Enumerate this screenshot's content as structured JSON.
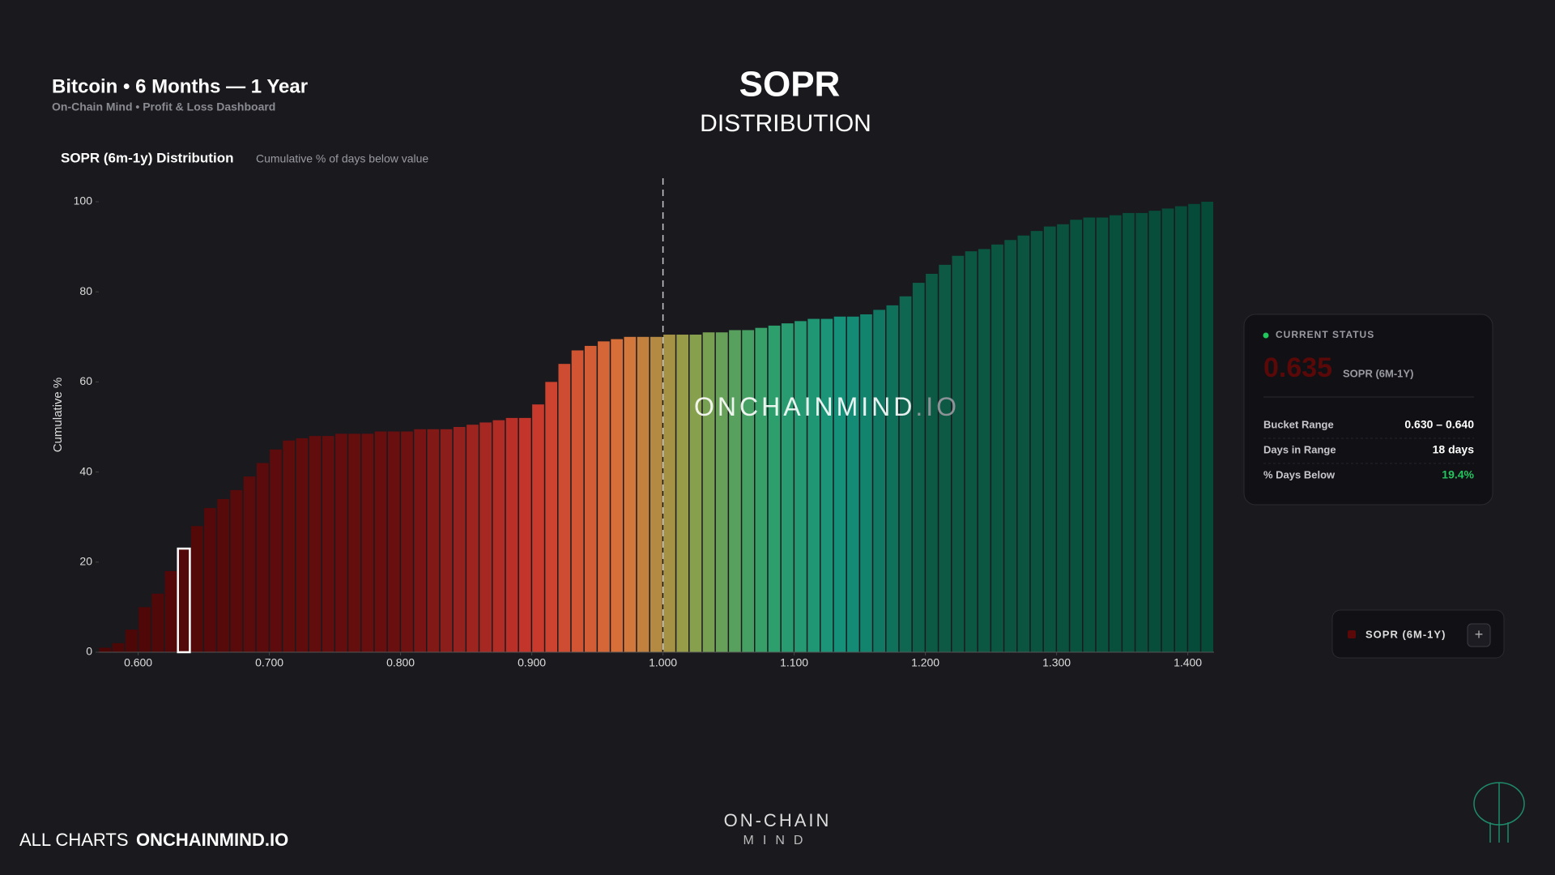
{
  "header": {
    "title": "Bitcoin • 6 Months — 1 Year",
    "subtitle": "On-Chain Mind • Profit & Loss Dashboard",
    "main_title": "SOPR",
    "main_subtitle": "DISTRIBUTION"
  },
  "chart_data": {
    "type": "histogram",
    "title": "SOPR (6m-1y) Distribution",
    "subtitle": "Cumulative % of days below value",
    "y_label": "Cumulative %",
    "bins": [
      0.57,
      0.58,
      0.59,
      0.6,
      0.61,
      0.62,
      0.63,
      0.64,
      0.65,
      0.66,
      0.67,
      0.68,
      0.69,
      0.7,
      0.71,
      0.72,
      0.73,
      0.74,
      0.75,
      0.76,
      0.77,
      0.78,
      0.79,
      0.8,
      0.81,
      0.82,
      0.83,
      0.84,
      0.85,
      0.86,
      0.87,
      0.88,
      0.89,
      0.9,
      0.91,
      0.92,
      0.93,
      0.94,
      0.95,
      0.96,
      0.97,
      0.98,
      0.99,
      1.0,
      1.01,
      1.02,
      1.03,
      1.04,
      1.05,
      1.06,
      1.07,
      1.08,
      1.09,
      1.1,
      1.11,
      1.12,
      1.13,
      1.14,
      1.15,
      1.16,
      1.17,
      1.18,
      1.19,
      1.2,
      1.21,
      1.22,
      1.23,
      1.24,
      1.25,
      1.26,
      1.27,
      1.28,
      1.29,
      1.3,
      1.31,
      1.32,
      1.33,
      1.34,
      1.35,
      1.36,
      1.37,
      1.38,
      1.39,
      1.4,
      1.41,
      1.42
    ],
    "values": [
      1,
      2,
      5,
      10,
      13,
      18,
      23,
      28,
      32,
      34,
      36,
      39,
      42,
      45,
      47,
      47.5,
      48,
      48,
      48.5,
      48.5,
      48.5,
      49,
      49,
      49,
      49.5,
      49.5,
      49.5,
      50,
      50.5,
      51,
      51.5,
      52,
      52,
      55,
      60,
      64,
      67,
      68,
      69,
      69.5,
      70,
      70,
      70,
      70.5,
      70.5,
      70.5,
      71,
      71,
      71.5,
      71.5,
      72,
      72.5,
      73,
      73.5,
      74,
      74,
      74.5,
      74.5,
      75,
      76,
      77,
      79,
      82,
      84,
      86,
      88,
      89,
      89.5,
      90.5,
      91.5,
      92.5,
      93.5,
      94.5,
      95,
      96,
      96.5,
      96.5,
      97,
      97.5,
      97.5,
      98,
      98.5,
      99,
      99.5,
      100
    ],
    "xlim": [
      0.57,
      1.42
    ],
    "xticks": [
      {
        "value": 0.6,
        "label": "0.600"
      },
      {
        "value": 0.7,
        "label": "0.700"
      },
      {
        "value": 0.8,
        "label": "0.800"
      },
      {
        "value": 0.9,
        "label": "0.900"
      },
      {
        "value": 1.0,
        "label": "1.000"
      },
      {
        "value": 1.1,
        "label": "1.100"
      },
      {
        "value": 1.2,
        "label": "1.200"
      },
      {
        "value": 1.3,
        "label": "1.300"
      },
      {
        "value": 1.4,
        "label": "1.400"
      }
    ],
    "ylim": [
      0,
      100
    ],
    "yticks": [
      0,
      20,
      40,
      60,
      80,
      100
    ],
    "reference_x": 1.0,
    "color_stops": [
      {
        "value": 0.57,
        "color": "#4a0606"
      },
      {
        "value": 0.8,
        "color": "#6a0f10"
      },
      {
        "value": 0.9,
        "color": "#c8362c"
      },
      {
        "value": 0.97,
        "color": "#d9733a"
      },
      {
        "value": 1.02,
        "color": "#8fa04a"
      },
      {
        "value": 1.08,
        "color": "#2fa06c"
      },
      {
        "value": 1.14,
        "color": "#14907a"
      },
      {
        "value": 1.2,
        "color": "#0d5a44"
      },
      {
        "value": 1.42,
        "color": "#064a38"
      }
    ],
    "watermark": "ONCHAINMIND",
    "watermark_suffix": ".IO"
  },
  "status": {
    "heading": "CURRENT STATUS",
    "value": 0.635,
    "series": "SOPR (6M-1Y)",
    "rows": [
      {
        "label": "Bucket Range",
        "value": "0.630 – 0.640"
      },
      {
        "label": "Days in Range",
        "value": "18 days"
      },
      {
        "label": "% Days Below",
        "value": "19.4%"
      }
    ]
  },
  "legend": {
    "label": "SOPR (6M-1Y)",
    "button": "+"
  },
  "footer": {
    "link": "ALL CHARTS",
    "site": "ONCHAINMIND.IO",
    "logo_top": "ON-CHAIN",
    "logo_bottom": "MIND"
  }
}
